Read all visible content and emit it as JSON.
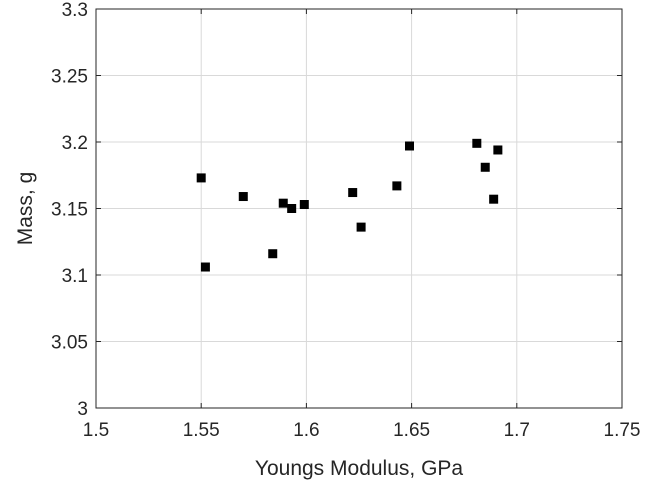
{
  "chart_data": {
    "type": "scatter",
    "xlabel": "Youngs Modulus, GPa",
    "ylabel": "Mass, g",
    "xlim": [
      1.5,
      1.75
    ],
    "ylim": [
      3.0,
      3.3
    ],
    "xticks": [
      "1.5",
      "1.55",
      "1.6",
      "1.65",
      "1.7",
      "1.75"
    ],
    "yticks": [
      "3",
      "3.05",
      "3.1",
      "3.15",
      "3.2",
      "3.25",
      "3.3"
    ],
    "grid": true,
    "marker": "square",
    "marker_color": "#000000",
    "series": [
      {
        "points": [
          {
            "x": 1.55,
            "y": 3.173
          },
          {
            "x": 1.552,
            "y": 3.106
          },
          {
            "x": 1.57,
            "y": 3.159
          },
          {
            "x": 1.584,
            "y": 3.116
          },
          {
            "x": 1.589,
            "y": 3.154
          },
          {
            "x": 1.593,
            "y": 3.15
          },
          {
            "x": 1.599,
            "y": 3.153
          },
          {
            "x": 1.622,
            "y": 3.162
          },
          {
            "x": 1.626,
            "y": 3.136
          },
          {
            "x": 1.643,
            "y": 3.167
          },
          {
            "x": 1.649,
            "y": 3.197
          },
          {
            "x": 1.681,
            "y": 3.199
          },
          {
            "x": 1.685,
            "y": 3.181
          },
          {
            "x": 1.689,
            "y": 3.157
          },
          {
            "x": 1.691,
            "y": 3.194
          }
        ]
      }
    ]
  }
}
